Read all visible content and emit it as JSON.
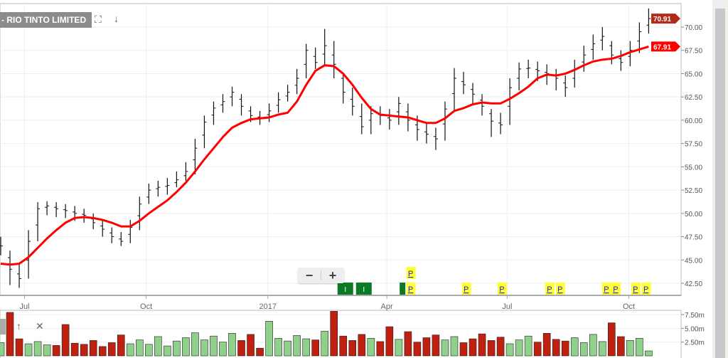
{
  "header": {
    "title": "- RIO TINTO LIMITED",
    "icons": [
      "fullscreen-icon",
      "arrow-down-icon"
    ]
  },
  "lower_panel": {
    "icons": [
      "arrow-up-icon",
      "close-icon"
    ]
  },
  "zoom_control": {
    "minus": "−",
    "plus": "+"
  },
  "colors": {
    "ma": "#ff0000",
    "bar": "#111111",
    "vol_up": "#8fd18a",
    "vol_down": "#c0200f",
    "last_tag": "#b22a1a",
    "ma_tag": "#ff0000",
    "marker_p": "#ffff33",
    "marker_i": "#0a7a23"
  },
  "chart_data": {
    "type": "ohlc",
    "price_axis": {
      "ticks": [
        "42.50",
        "45.00",
        "47.50",
        "50.00",
        "52.50",
        "55.00",
        "57.50",
        "60.00",
        "62.50",
        "65.00",
        "67.50",
        "70.00"
      ],
      "range": [
        41.5,
        72.5
      ]
    },
    "volume_axis": {
      "ticks": [
        "2.50m",
        "5.00m",
        "7.50m"
      ],
      "range": [
        0,
        8.2
      ]
    },
    "x_ticks": [
      {
        "label": "Jul",
        "date": "2016-07-01"
      },
      {
        "label": "Oct",
        "date": "2016-10-01"
      },
      {
        "label": "2017",
        "date": "2017-01-01"
      },
      {
        "label": "Apr",
        "date": "2017-04-01"
      },
      {
        "label": "Jul",
        "date": "2017-07-01"
      },
      {
        "label": "Oct",
        "date": "2017-10-01"
      }
    ],
    "last_price": "70.91",
    "ma_last": "67.91",
    "dates": [
      "2016-06-13",
      "2016-06-20",
      "2016-06-27",
      "2016-07-04",
      "2016-07-11",
      "2016-07-18",
      "2016-07-25",
      "2016-08-01",
      "2016-08-08",
      "2016-08-15",
      "2016-08-22",
      "2016-08-29",
      "2016-09-05",
      "2016-09-12",
      "2016-09-19",
      "2016-09-26",
      "2016-10-03",
      "2016-10-10",
      "2016-10-17",
      "2016-10-24",
      "2016-10-31",
      "2016-11-07",
      "2016-11-14",
      "2016-11-21",
      "2016-11-28",
      "2016-12-05",
      "2016-12-12",
      "2016-12-19",
      "2016-12-26",
      "2017-01-02",
      "2017-01-09",
      "2017-01-16",
      "2017-01-23",
      "2017-01-30",
      "2017-02-06",
      "2017-02-13",
      "2017-02-20",
      "2017-02-27",
      "2017-03-06",
      "2017-03-13",
      "2017-03-20",
      "2017-03-27",
      "2017-04-03",
      "2017-04-10",
      "2017-04-17",
      "2017-04-24",
      "2017-05-01",
      "2017-05-08",
      "2017-05-15",
      "2017-05-22",
      "2017-05-29",
      "2017-06-05",
      "2017-06-12",
      "2017-06-19",
      "2017-06-26",
      "2017-07-03",
      "2017-07-10",
      "2017-07-17",
      "2017-07-24",
      "2017-07-31",
      "2017-08-07",
      "2017-08-14",
      "2017-08-21",
      "2017-08-28",
      "2017-09-04",
      "2017-09-11",
      "2017-09-18",
      "2017-09-25",
      "2017-10-02",
      "2017-10-09",
      "2017-10-16"
    ],
    "hlc": [
      [
        47.5,
        45.5,
        46.5
      ],
      [
        46,
        42.3,
        44
      ],
      [
        44.5,
        42,
        43
      ],
      [
        48.2,
        43,
        47
      ],
      [
        51.2,
        47,
        50.5
      ],
      [
        51.3,
        49.8,
        50.8
      ],
      [
        51.2,
        49.6,
        50.5
      ],
      [
        51,
        49.5,
        50.3
      ],
      [
        50.8,
        49.2,
        50
      ],
      [
        50.5,
        49,
        49.8
      ],
      [
        50,
        48.3,
        49
      ],
      [
        49.3,
        47.5,
        48.3
      ],
      [
        48.5,
        46.8,
        47.5
      ],
      [
        48,
        46.5,
        47
      ],
      [
        49.3,
        46.8,
        48.5
      ],
      [
        51.8,
        48.2,
        51
      ],
      [
        53.2,
        51,
        52.5
      ],
      [
        53.5,
        51.8,
        52.8
      ],
      [
        53.8,
        52,
        53
      ],
      [
        54.5,
        52.8,
        53.6
      ],
      [
        55.5,
        53.5,
        54.5
      ],
      [
        58,
        54.2,
        57
      ],
      [
        60.5,
        57,
        59.8
      ],
      [
        62,
        59.5,
        61.3
      ],
      [
        62.8,
        60.8,
        62
      ],
      [
        63.6,
        61.5,
        63
      ],
      [
        62.8,
        60.5,
        61.5
      ],
      [
        61.5,
        59.8,
        60.5
      ],
      [
        61,
        59.5,
        60.2
      ],
      [
        61.8,
        59.8,
        61
      ],
      [
        63,
        60.8,
        62.2
      ],
      [
        63.8,
        62,
        63
      ],
      [
        65.5,
        62.8,
        64.5
      ],
      [
        68.2,
        64.5,
        67.5
      ],
      [
        67.8,
        65.5,
        66.2
      ],
      [
        69.8,
        65.8,
        68
      ],
      [
        68.5,
        64.5,
        66
      ],
      [
        65,
        61.8,
        63
      ],
      [
        63.5,
        60.5,
        61.5
      ],
      [
        61.8,
        58.5,
        59.3
      ],
      [
        61.5,
        58.5,
        60.7
      ],
      [
        61.5,
        59.5,
        60.5
      ],
      [
        61.2,
        59,
        60
      ],
      [
        62.5,
        59.5,
        61.8
      ],
      [
        61.8,
        58.8,
        60
      ],
      [
        60.5,
        57.8,
        59
      ],
      [
        59.8,
        57.5,
        58.5
      ],
      [
        59.2,
        56.8,
        58
      ],
      [
        62,
        57.8,
        61.2
      ],
      [
        65.6,
        61,
        64.5
      ],
      [
        65.2,
        62.8,
        63.8
      ],
      [
        64,
        61.8,
        62.8
      ],
      [
        62.8,
        60.5,
        61.5
      ],
      [
        61.2,
        58.2,
        59.9
      ],
      [
        60.8,
        58.5,
        59.5
      ],
      [
        64.5,
        59.5,
        63.5
      ],
      [
        66.2,
        63.2,
        65.5
      ],
      [
        66.5,
        64.5,
        65.6
      ],
      [
        66.3,
        64.2,
        65.3
      ],
      [
        66,
        63.8,
        65
      ],
      [
        65.5,
        63.2,
        64.5
      ],
      [
        64.8,
        62.5,
        63.5
      ],
      [
        66.5,
        63.5,
        65.5
      ],
      [
        68,
        65.2,
        67
      ],
      [
        69.2,
        66.5,
        68.2
      ],
      [
        70,
        67.5,
        69
      ],
      [
        68.5,
        66,
        67
      ],
      [
        67.5,
        65.3,
        66.2
      ],
      [
        68.5,
        65.8,
        67.5
      ],
      [
        70.5,
        67.2,
        69.5
      ],
      [
        72,
        69.3,
        70.91
      ]
    ],
    "moving_average": [
      44.6,
      44.5,
      44.6,
      45.3,
      46.3,
      47.3,
      48.2,
      49,
      49.5,
      49.6,
      49.5,
      49.3,
      49,
      48.6,
      48.6,
      49.2,
      50,
      50.7,
      51.4,
      52.3,
      53.3,
      54.5,
      55.8,
      57,
      58.2,
      59.2,
      59.7,
      60.1,
      60.2,
      60.3,
      60.6,
      60.8,
      62,
      63.8,
      65.3,
      65.9,
      65.8,
      65,
      63.8,
      62.4,
      61.2,
      60.6,
      60.5,
      60.4,
      60.3,
      60,
      59.7,
      59.7,
      60.2,
      61,
      61.3,
      61.7,
      61.9,
      61.8,
      61.8,
      62.3,
      62.9,
      63.6,
      64.5,
      64.9,
      64.8,
      65,
      65.4,
      65.9,
      66.3,
      66.5,
      66.6,
      66.9,
      67.3,
      67.6,
      67.91
    ],
    "volume_m": [
      2.4,
      7.9,
      3.1,
      2.2,
      2.6,
      2.0,
      1.9,
      5.7,
      2.3,
      2.1,
      2.8,
      1.7,
      2.4,
      3.8,
      2.2,
      2.9,
      2.1,
      3.5,
      1.8,
      2.7,
      3.3,
      4.2,
      2.9,
      3.6,
      2.5,
      4.1,
      2.8,
      3.9,
      1.4,
      6.3,
      3.2,
      2.7,
      3.7,
      3.1,
      2.9,
      4.5,
      8.1,
      3.6,
      2.8,
      3.9,
      3.2,
      2.6,
      5.3,
      3.0,
      4.4,
      2.5,
      3.3,
      3.8,
      2.9,
      3.5,
      2.4,
      3.1,
      4.0,
      2.8,
      3.4,
      2.2,
      2.9,
      3.6,
      2.5,
      4.1,
      3.0,
      2.7,
      3.3,
      2.4,
      3.9,
      2.6,
      6.0,
      3.5,
      2.8,
      3.2,
      0.9
    ],
    "events": [
      {
        "label": "I",
        "date": "2017-02-27",
        "type": "i"
      },
      {
        "label": "I",
        "date": "2017-03-13",
        "type": "i"
      },
      {
        "label": "",
        "date": "2017-04-15",
        "type": "i"
      },
      {
        "label": "P",
        "date": "2017-04-19",
        "type": "p",
        "row": 1
      },
      {
        "label": "P",
        "date": "2017-04-19",
        "type": "p",
        "row": 0
      },
      {
        "label": "P",
        "date": "2017-05-31",
        "type": "p",
        "row": 0
      },
      {
        "label": "P",
        "date": "2017-06-27",
        "type": "p",
        "row": 0
      },
      {
        "label": "P",
        "date": "2017-08-02",
        "type": "p",
        "row": 0
      },
      {
        "label": "P",
        "date": "2017-08-10",
        "type": "p",
        "row": 0
      },
      {
        "label": "P",
        "date": "2017-09-14",
        "type": "p",
        "row": 0
      },
      {
        "label": "P",
        "date": "2017-09-21",
        "type": "p",
        "row": 0
      },
      {
        "label": "P",
        "date": "2017-10-06",
        "type": "p",
        "row": 0
      },
      {
        "label": "P",
        "date": "2017-10-14",
        "type": "p",
        "row": 0
      }
    ]
  }
}
